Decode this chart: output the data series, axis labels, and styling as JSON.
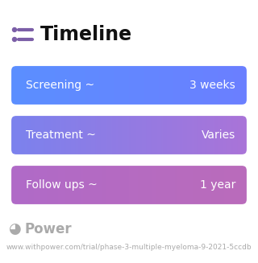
{
  "title": "Timeline",
  "title_icon_color": "#7B5EA7",
  "title_color": "#111111",
  "title_fontsize": 17,
  "background_color": "#ffffff",
  "rows": [
    {
      "label": "Screening ~",
      "value": "3 weeks",
      "color_left": "#5B8FFF",
      "color_right": "#6B7FFF"
    },
    {
      "label": "Treatment ~",
      "value": "Varies",
      "color_left": "#7B82EE",
      "color_right": "#AA74D8"
    },
    {
      "label": "Follow ups ~",
      "value": "1 year",
      "color_left": "#B06AC8",
      "color_right": "#BA6CBB"
    }
  ],
  "footer_color": "#AAAAAA",
  "footer_text": "Power",
  "footer_url": "www.withpower.com/trial/phase-3-multiple-myeloma-9-2021-5ccdb",
  "footer_fontsize": 6.5,
  "footer_logo_fontsize": 10,
  "label_fontsize": 10,
  "value_fontsize": 10
}
